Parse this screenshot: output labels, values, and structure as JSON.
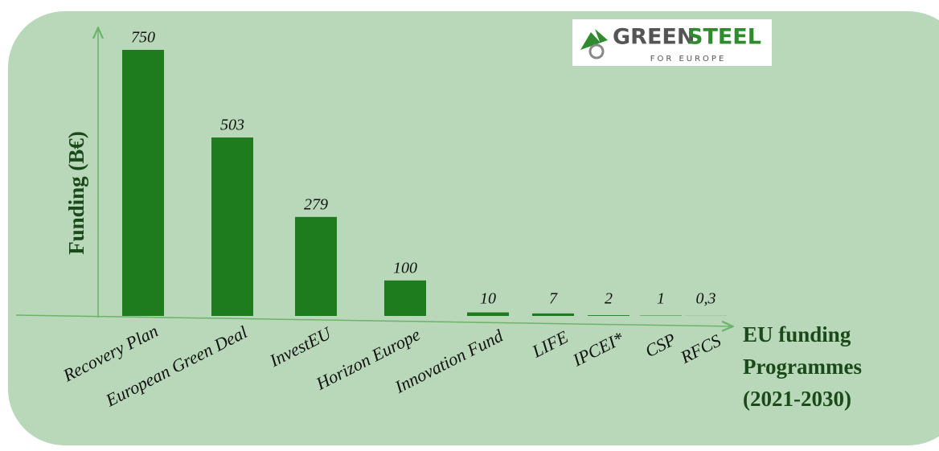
{
  "chart_data": {
    "type": "bar",
    "categories": [
      "Recovery Plan",
      "European Green Deal",
      "InvestEU",
      "Horizon Europe",
      "Innovation Fund",
      "LIFE",
      "IPCEI*",
      "CSP",
      "RFCS"
    ],
    "values": [
      750,
      503,
      279,
      100,
      10,
      7,
      2,
      1,
      0.3
    ],
    "value_labels": [
      "750",
      "503",
      "279",
      "100",
      "10",
      "7",
      "2",
      "1",
      "0,3"
    ],
    "color": "#1e7b1e",
    "ylim": [
      0,
      750
    ],
    "y_label": "Funding (B€)",
    "x_label": "EU funding Programmes (2021-2030)"
  },
  "logo": {
    "word1": "GREEN",
    "word2": "STEEL",
    "tagline": "FOR EUROPE"
  }
}
